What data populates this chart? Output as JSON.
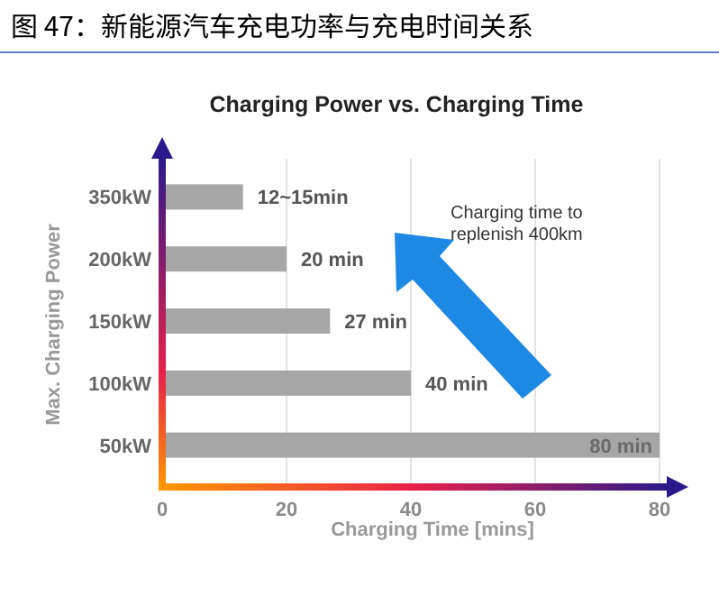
{
  "chart_data": {
    "type": "bar",
    "orientation": "horizontal",
    "title": "图 47：新能源汽车充电功率与充电时间关系",
    "subtitle": "Charging Power vs. Charging Time",
    "xlabel": "Charging Time [mins]",
    "ylabel": "Max. Charging Power",
    "categories": [
      "350kW",
      "200kW",
      "150kW",
      "100kW",
      "50kW"
    ],
    "values": [
      13,
      20,
      27,
      40,
      80
    ],
    "value_labels": [
      null,
      "20 min",
      "27 min",
      "40 min",
      "80 min"
    ],
    "color": "#a6a6a6",
    "xlim": [
      0,
      80
    ],
    "xticks": [
      0,
      20,
      40,
      60,
      80
    ],
    "grid": "x",
    "annotations": [
      {
        "text": "12~15min",
        "x": 13,
        "y": "350kW"
      },
      "Charging time to replenish 400km"
    ]
  }
}
